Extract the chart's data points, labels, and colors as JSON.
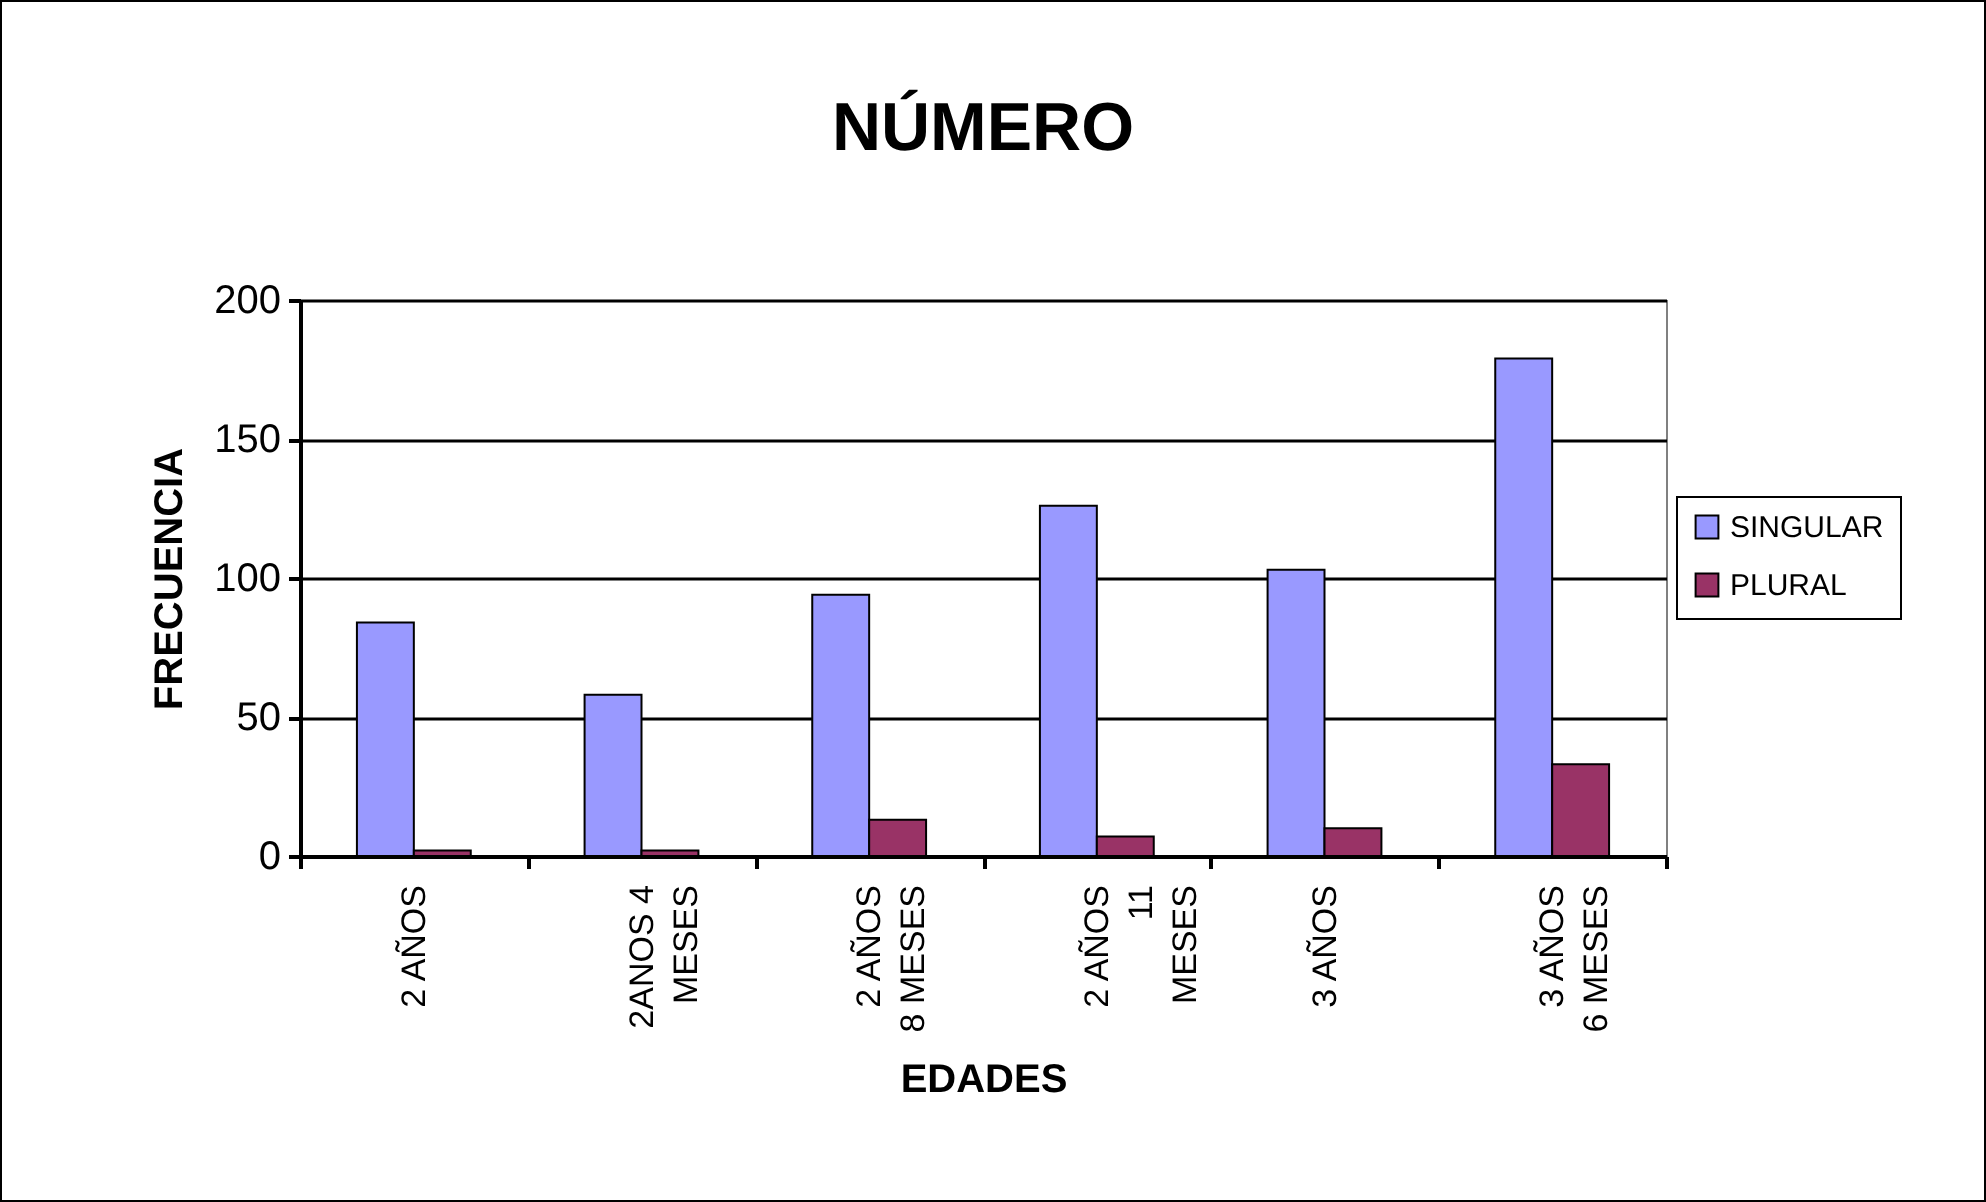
{
  "chart_data": {
    "type": "bar",
    "title": "NÚMERO",
    "xlabel": "EDADES",
    "ylabel": "FRECUENCIA",
    "categories": [
      "2 AÑOS",
      "2ANOS 4\nMESES",
      "2 AÑOS\n8 MESES",
      "2 AÑOS\n11\nMESES",
      "3 AÑOS",
      "3 AÑOS\n6 MESES"
    ],
    "series": [
      {
        "name": "SINGULAR",
        "color": "#9999ff",
        "values": [
          84,
          58,
          94,
          126,
          103,
          179
        ]
      },
      {
        "name": "PLURAL",
        "color": "#993366",
        "values": [
          2,
          2,
          13,
          7,
          10,
          33
        ]
      }
    ],
    "ylim": [
      0,
      200
    ],
    "yticks": [
      0,
      50,
      100,
      150,
      200
    ],
    "grid": "y",
    "legend": "right"
  }
}
